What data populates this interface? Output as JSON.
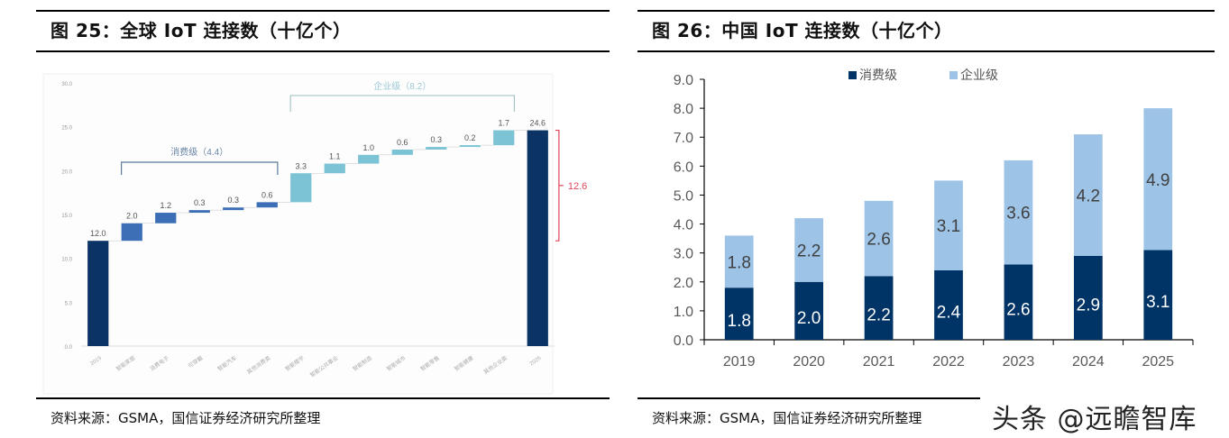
{
  "left_panel": {
    "title": "图 25：全球 IoT 连接数（十亿个）",
    "source": "资料来源：GSMA，国信证券经济研究所整理"
  },
  "right_panel": {
    "title": "图 26：中国 IoT 连接数（十亿个）",
    "source": "资料来源：GSMA，国信证券经济研究所整理"
  },
  "watermark": "头条 @远瞻智库",
  "chart_data": [
    {
      "type": "bar",
      "subtype": "waterfall",
      "title": "全球 IoT 连接数（十亿个）",
      "xlabel": "",
      "ylabel": "",
      "ylim": [
        0,
        30
      ],
      "yticks": [
        "0.0",
        "5.0",
        "10.0",
        "15.0",
        "20.0",
        "25.0",
        "30.0"
      ],
      "categories": [
        "2019",
        "智能家居",
        "消费电子",
        "可穿戴",
        "智能汽车",
        "其他消费类",
        "智能楼宇",
        "智能公共事业",
        "智能制造",
        "智能城市",
        "智能零售",
        "智能健康",
        "其他企业类",
        "2025"
      ],
      "values": [
        12.0,
        2.0,
        1.2,
        0.3,
        0.3,
        0.6,
        3.3,
        1.1,
        1.0,
        0.6,
        0.3,
        0.2,
        1.7,
        24.6
      ],
      "labels": [
        "12.0",
        "2.0",
        "1.2",
        "0.3",
        "0.3",
        "0.6",
        "3.3",
        "1.1",
        "1.0",
        "0.6",
        "0.3",
        "0.2",
        "1.7",
        "24.6"
      ],
      "kinds": [
        "total",
        "consumer",
        "consumer",
        "consumer",
        "consumer",
        "consumer",
        "enterprise",
        "enterprise",
        "enterprise",
        "enterprise",
        "enterprise",
        "enterprise",
        "enterprise",
        "total"
      ],
      "annotations": {
        "consumer_bracket": "消费级（4.4）",
        "enterprise_bracket": "企业级（8.2）",
        "growth": "12.6"
      },
      "colors": {
        "total": "#0b3366",
        "consumer": "#3d6fb6",
        "enterprise": "#7cc3d6",
        "growth": "#e0445a"
      }
    },
    {
      "type": "bar",
      "subtype": "stacked",
      "title": "中国 IoT 连接数（十亿个）",
      "xlabel": "",
      "ylabel": "",
      "ylim": [
        0,
        9
      ],
      "yticks": [
        "0.0",
        "1.0",
        "2.0",
        "3.0",
        "4.0",
        "5.0",
        "6.0",
        "7.0",
        "8.0",
        "9.0"
      ],
      "categories": [
        "2019",
        "2020",
        "2021",
        "2022",
        "2023",
        "2024",
        "2025"
      ],
      "series": [
        {
          "name": "消费级",
          "color": "#003366",
          "values": [
            1.8,
            2.0,
            2.2,
            2.4,
            2.6,
            2.9,
            3.1
          ]
        },
        {
          "name": "企业级",
          "color": "#9dc3e6",
          "values": [
            1.8,
            2.2,
            2.6,
            3.1,
            3.6,
            4.2,
            4.9
          ]
        }
      ],
      "legend": "top-center",
      "grid": false
    }
  ]
}
